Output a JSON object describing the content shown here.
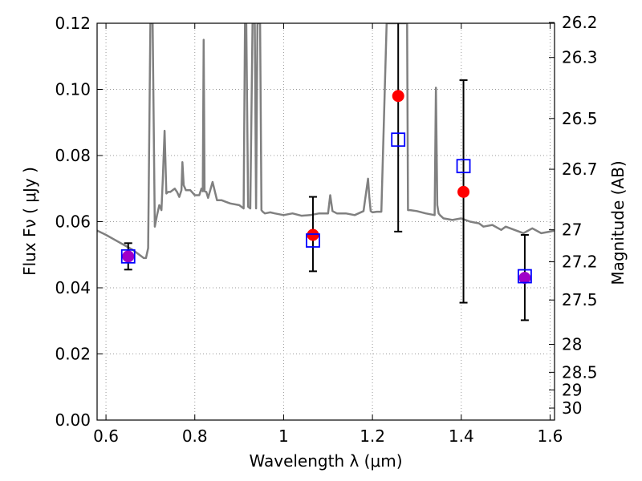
{
  "chart_data": {
    "type": "scatter",
    "title": "",
    "xlabel": "Wavelength  λ (μm)",
    "ylabel": "Flux  Fν  ( μJy )",
    "y2label": "Magnitude (AB)",
    "xlim": [
      0.58,
      1.61
    ],
    "ylim": [
      0.0,
      0.12
    ],
    "grid": true,
    "legend": "none",
    "x_ticks": [
      0.6,
      0.8,
      1.0,
      1.2,
      1.4,
      1.6
    ],
    "x_tick_labels": [
      "0.6",
      "0.8",
      "1",
      "1.2",
      "1.4",
      "1.6"
    ],
    "y_ticks": [
      0.0,
      0.02,
      0.04,
      0.06,
      0.08,
      0.1,
      0.12
    ],
    "y_tick_labels": [
      "0.00",
      "0.02",
      "0.04",
      "0.06",
      "0.08",
      "0.10",
      "0.12"
    ],
    "mag_ticks": [
      26.2,
      26.3,
      26.5,
      26.7,
      27,
      27.2,
      27.5,
      28,
      28.5,
      29,
      30
    ],
    "mag_tick_labels": [
      "26.2",
      "26.3",
      "26.5",
      "26.7",
      "27",
      "27.2",
      "27.5",
      "28",
      "28.5",
      "29",
      "30"
    ],
    "colors": {
      "model": "#808080",
      "observed": "#ff0000",
      "model_band": "#0000ff",
      "overlap": "#a000c8",
      "errorbar": "#000000",
      "grid": "#999999"
    },
    "series": [
      {
        "kind": "model_spectrum",
        "x": [
          0.58,
          0.6,
          0.62,
          0.64,
          0.66,
          0.675,
          0.685,
          0.69,
          0.695,
          0.7,
          0.702,
          0.705,
          0.71,
          0.715,
          0.72,
          0.725,
          0.728,
          0.732,
          0.736,
          0.74,
          0.745,
          0.75,
          0.755,
          0.76,
          0.765,
          0.77,
          0.772,
          0.775,
          0.78,
          0.79,
          0.8,
          0.81,
          0.815,
          0.818,
          0.82,
          0.822,
          0.826,
          0.83,
          0.84,
          0.85,
          0.86,
          0.87,
          0.88,
          0.9,
          0.91,
          0.913,
          0.916,
          0.92,
          0.925,
          0.93,
          0.932,
          0.935,
          0.938,
          0.941,
          0.944,
          0.947,
          0.95,
          0.953,
          0.958,
          0.97,
          0.98,
          1.0,
          1.02,
          1.04,
          1.06,
          1.08,
          1.1,
          1.105,
          1.11,
          1.12,
          1.14,
          1.16,
          1.18,
          1.19,
          1.193,
          1.196,
          1.2,
          1.21,
          1.22,
          1.232,
          1.236,
          1.24,
          1.26,
          1.27,
          1.278,
          1.28,
          1.285,
          1.3,
          1.32,
          1.34,
          1.343,
          1.346,
          1.349,
          1.352,
          1.36,
          1.38,
          1.4,
          1.42,
          1.44,
          1.45,
          1.47,
          1.49,
          1.5,
          1.52,
          1.54,
          1.56,
          1.58,
          1.6,
          1.61
        ],
        "y": [
          0.0573,
          0.056,
          0.0545,
          0.053,
          0.0515,
          0.05,
          0.049,
          0.049,
          0.052,
          0.12,
          0.12,
          0.12,
          0.0585,
          0.062,
          0.065,
          0.0635,
          0.073,
          0.0875,
          0.0685,
          0.069,
          0.069,
          0.0695,
          0.07,
          0.069,
          0.0675,
          0.0695,
          0.078,
          0.071,
          0.0695,
          0.0695,
          0.068,
          0.068,
          0.07,
          0.0692,
          0.115,
          0.0692,
          0.069,
          0.0672,
          0.072,
          0.0665,
          0.0665,
          0.066,
          0.0655,
          0.065,
          0.064,
          0.12,
          0.12,
          0.0645,
          0.064,
          0.12,
          0.12,
          0.12,
          0.064,
          0.12,
          0.12,
          0.12,
          0.0635,
          0.063,
          0.0625,
          0.0628,
          0.0625,
          0.062,
          0.0625,
          0.0618,
          0.062,
          0.0625,
          0.0625,
          0.068,
          0.0632,
          0.0625,
          0.0625,
          0.062,
          0.0632,
          0.073,
          0.0675,
          0.0632,
          0.0628,
          0.063,
          0.063,
          0.12,
          0.12,
          0.12,
          0.12,
          0.12,
          0.12,
          0.0635,
          0.0635,
          0.0632,
          0.0625,
          0.062,
          0.1005,
          0.065,
          0.0625,
          0.062,
          0.061,
          0.0605,
          0.061,
          0.06,
          0.0595,
          0.0585,
          0.059,
          0.0575,
          0.0585,
          0.0575,
          0.0565,
          0.058,
          0.0565,
          0.057,
          0.0573
        ]
      },
      {
        "kind": "observed",
        "x": [
          0.65,
          1.066,
          1.258,
          1.405,
          1.543
        ],
        "y": [
          0.0495,
          0.056,
          0.098,
          0.069,
          0.043
        ],
        "err_low": [
          0.0455,
          0.045,
          0.057,
          0.0355,
          0.0302
        ],
        "err_high": [
          0.0535,
          0.0675,
          0.12,
          0.1028,
          0.056
        ]
      },
      {
        "kind": "model_bandpass",
        "x": [
          0.65,
          1.066,
          1.258,
          1.405,
          1.543
        ],
        "y": [
          0.0495,
          0.0543,
          0.0848,
          0.0768,
          0.0435
        ]
      }
    ]
  }
}
